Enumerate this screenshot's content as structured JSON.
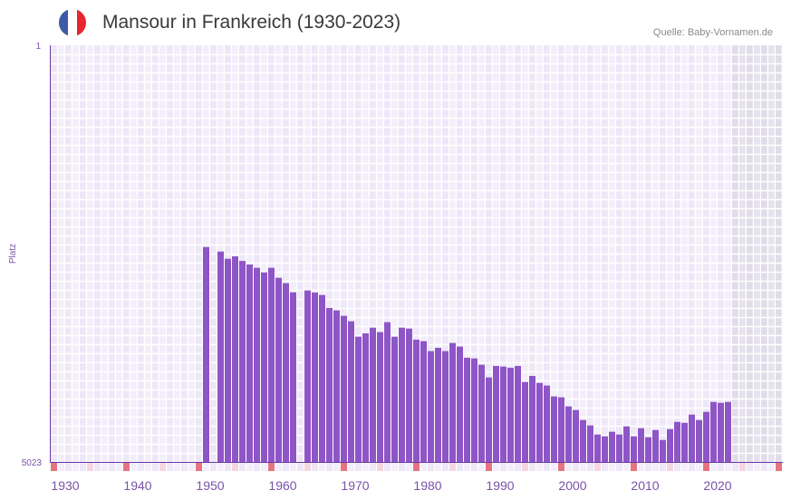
{
  "header": {
    "title": "Mansour in Frankreich (1930-2023)",
    "source": "Quelle: Baby-Vornamen.de",
    "flag_icon": "france-flag-icon",
    "flag_colors": [
      "#3c5aa6",
      "#ffffff",
      "#e8262f"
    ]
  },
  "colors": {
    "bar": "#8e55c7",
    "axis": "#6a3aa2",
    "marker_decade": "#e57380",
    "marker_half": "#f5d6df",
    "future_shade": "#e4e0ec"
  },
  "chart_data": {
    "type": "bar",
    "title": "Mansour in Frankreich (1930-2023)",
    "xlabel": "",
    "ylabel": "Platz",
    "y_inverted": true,
    "ylim": [
      1,
      5023
    ],
    "ytick_labels": [
      "1",
      "5023"
    ],
    "x_range": [
      1929,
      2029
    ],
    "xtick_labels": [
      "1930",
      "1940",
      "1950",
      "1960",
      "1970",
      "1980",
      "1990",
      "2000",
      "2010",
      "2020"
    ],
    "shaded_from_year": 2023,
    "x": [
      1950,
      1952,
      1953,
      1954,
      1955,
      1956,
      1957,
      1958,
      1959,
      1960,
      1961,
      1962,
      1964,
      1965,
      1966,
      1967,
      1968,
      1969,
      1970,
      1971,
      1972,
      1973,
      1974,
      1975,
      1976,
      1977,
      1978,
      1979,
      1980,
      1981,
      1982,
      1983,
      1984,
      1985,
      1986,
      1987,
      1988,
      1989,
      1990,
      1991,
      1992,
      1993,
      1994,
      1995,
      1996,
      1997,
      1998,
      1999,
      2000,
      2001,
      2002,
      2003,
      2004,
      2005,
      2006,
      2007,
      2008,
      2009,
      2010,
      2011,
      2012,
      2013,
      2014,
      2015,
      2016,
      2017,
      2018,
      2019,
      2020,
      2021,
      2022
    ],
    "values": [
      2432,
      2487,
      2574,
      2545,
      2600,
      2643,
      2683,
      2738,
      2683,
      2803,
      2868,
      2978,
      2956,
      2981,
      3010,
      3167,
      3196,
      3262,
      3327,
      3513,
      3473,
      3404,
      3458,
      3338,
      3513,
      3404,
      3415,
      3549,
      3567,
      3687,
      3647,
      3687,
      3589,
      3632,
      3767,
      3775,
      3851,
      4004,
      3866,
      3873,
      3887,
      3866,
      4059,
      3986,
      4070,
      4102,
      4233,
      4244,
      4353,
      4397,
      4517,
      4583,
      4692,
      4714,
      4659,
      4692,
      4594,
      4714,
      4616,
      4725,
      4638,
      4758,
      4627,
      4540,
      4551,
      4452,
      4517,
      4419,
      4299,
      4310,
      4299
    ]
  }
}
